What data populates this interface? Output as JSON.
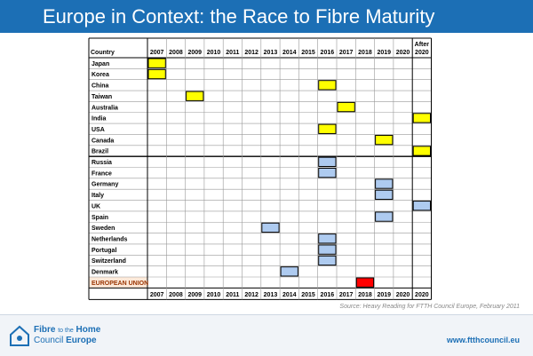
{
  "title": "Europe in Context: the Race to Fibre Maturity",
  "table": {
    "country_header": "Country",
    "after_label": "After",
    "years": [
      "2007",
      "2008",
      "2009",
      "2010",
      "2011",
      "2012",
      "2013",
      "2014",
      "2015",
      "2016",
      "2017",
      "2018",
      "2019",
      "2020",
      "2020"
    ],
    "rows": [
      {
        "country": "Japan",
        "year": "2007",
        "color": "#ffff00"
      },
      {
        "country": "Korea",
        "year": "2007",
        "color": "#ffff00"
      },
      {
        "country": "China",
        "year": "2016",
        "color": "#ffff00"
      },
      {
        "country": "Taiwan",
        "year": "2009",
        "color": "#ffff00"
      },
      {
        "country": "Australia",
        "year": "2017",
        "color": "#ffff00"
      },
      {
        "country": "India",
        "year": "After 2020",
        "color": "#ffff00"
      },
      {
        "country": "USA",
        "year": "2016",
        "color": "#ffff00"
      },
      {
        "country": "Canada",
        "year": "2019",
        "color": "#ffff00"
      },
      {
        "country": "Brazil",
        "year": "After 2020",
        "color": "#ffff00"
      },
      {
        "country": "Russia",
        "year": "2016",
        "color": "#aecbf0"
      },
      {
        "country": "France",
        "year": "2016",
        "color": "#aecbf0"
      },
      {
        "country": "Germany",
        "year": "2019",
        "color": "#aecbf0"
      },
      {
        "country": "Italy",
        "year": "2019",
        "color": "#aecbf0"
      },
      {
        "country": "UK",
        "year": "After 2020",
        "color": "#aecbf0"
      },
      {
        "country": "Spain",
        "year": "2019",
        "color": "#aecbf0"
      },
      {
        "country": "Sweden",
        "year": "2013",
        "color": "#aecbf0"
      },
      {
        "country": "Netherlands",
        "year": "2016",
        "color": "#aecbf0"
      },
      {
        "country": "Portugal",
        "year": "2016",
        "color": "#aecbf0"
      },
      {
        "country": "Switzerland",
        "year": "2016",
        "color": "#aecbf0"
      },
      {
        "country": "Denmark",
        "year": "2014",
        "color": "#aecbf0"
      },
      {
        "country": "EUROPEAN UNION",
        "year": "2018",
        "color": "#ff0000",
        "highlight": "#fde9d9"
      }
    ]
  },
  "source": "Source: Heavy Reading for FTTH Council Europe, February 2011",
  "footer": {
    "logo_line1_a": "Fibre",
    "logo_line1_b": "to the",
    "logo_line1_c": "Home",
    "logo_line2_a": "Council",
    "logo_line2_b": "Europe",
    "website": "www.ftthcouncil.eu"
  },
  "colors": {
    "brand_blue": "#1c6fb5",
    "asia_yellow": "#ffff00",
    "europe_blue": "#aecbf0",
    "eu_red": "#ff0000"
  }
}
